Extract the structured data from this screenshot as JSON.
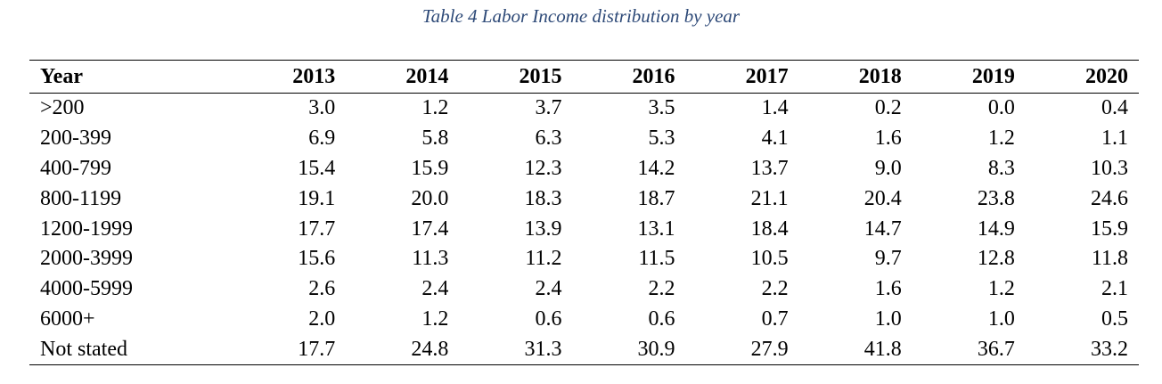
{
  "caption": "Table 4 Labor Income distribution by year",
  "table": {
    "headers": [
      "Year",
      "2013",
      "2014",
      "2015",
      "2016",
      "2017",
      "2018",
      "2019",
      "2020"
    ],
    "rows": [
      [
        ">200",
        "3.0",
        "1.2",
        "3.7",
        "3.5",
        "1.4",
        "0.2",
        "0.0",
        "0.4"
      ],
      [
        "200-399",
        "6.9",
        "5.8",
        "6.3",
        "5.3",
        "4.1",
        "1.6",
        "1.2",
        "1.1"
      ],
      [
        "400-799",
        "15.4",
        "15.9",
        "12.3",
        "14.2",
        "13.7",
        "9.0",
        "8.3",
        "10.3"
      ],
      [
        "800-1199",
        "19.1",
        "20.0",
        "18.3",
        "18.7",
        "21.1",
        "20.4",
        "23.8",
        "24.6"
      ],
      [
        "1200-1999",
        "17.7",
        "17.4",
        "13.9",
        "13.1",
        "18.4",
        "14.7",
        "14.9",
        "15.9"
      ],
      [
        "2000-3999",
        "15.6",
        "11.3",
        "11.2",
        "11.5",
        "10.5",
        "9.7",
        "12.8",
        "11.8"
      ],
      [
        "4000-5999",
        "2.6",
        "2.4",
        "2.4",
        "2.2",
        "2.2",
        "1.6",
        "1.2",
        "2.1"
      ],
      [
        "6000+",
        "2.0",
        "1.2",
        "0.6",
        "0.6",
        "0.7",
        "1.0",
        "1.0",
        "0.5"
      ],
      [
        "Not stated",
        "17.7",
        "24.8",
        "31.3",
        "30.9",
        "27.9",
        "41.8",
        "36.7",
        "33.2"
      ]
    ]
  },
  "colors": {
    "caption": "#2e4a78",
    "text": "#000000",
    "rule": "#000000"
  }
}
